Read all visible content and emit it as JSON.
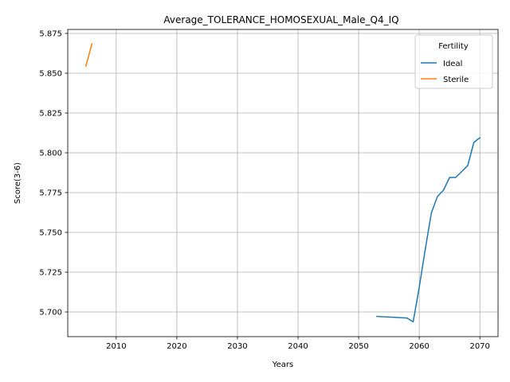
{
  "chart_data": {
    "type": "line",
    "title": "Average_TOLERANCE_HOMOSEXUAL_Male_Q4_IQ",
    "xlabel": "Years",
    "ylabel": "Score(3-6)",
    "xlim": [
      2002,
      2073
    ],
    "ylim": [
      5.6845,
      5.8775
    ],
    "xticks": [
      2010,
      2020,
      2030,
      2040,
      2050,
      2060,
      2070
    ],
    "xtick_labels": [
      "2010",
      "2020",
      "2030",
      "2040",
      "2050",
      "2060",
      "2070"
    ],
    "yticks": [
      5.7,
      5.725,
      5.75,
      5.775,
      5.8,
      5.825,
      5.85,
      5.875
    ],
    "ytick_labels": [
      "5.700",
      "5.725",
      "5.750",
      "5.775",
      "5.800",
      "5.825",
      "5.850",
      "5.875"
    ],
    "grid": true,
    "legend": {
      "title": "Fertility",
      "position": "top-right"
    },
    "series": [
      {
        "name": "Ideal",
        "color": "#1f77b4",
        "x": [
          2053,
          2058,
          2059,
          2060,
          2061,
          2062,
          2063,
          2064,
          2065,
          2066,
          2067,
          2068,
          2069,
          2070
        ],
        "y": [
          5.6972,
          5.6962,
          5.6938,
          5.7155,
          5.7395,
          5.7622,
          5.7725,
          5.7765,
          5.7845,
          5.7845,
          5.7882,
          5.792,
          5.8065,
          5.8095
        ]
      },
      {
        "name": "Sterile",
        "color": "#ff7f0e",
        "x": [
          2005,
          2006
        ],
        "y": [
          5.8545,
          5.8685
        ]
      }
    ]
  }
}
